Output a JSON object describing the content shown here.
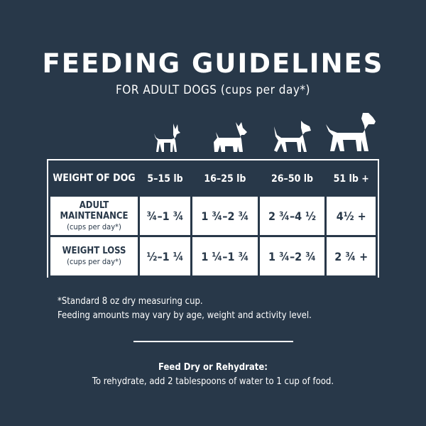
{
  "title": "FEEDING GUIDELINES",
  "subtitle": "FOR ADULT DOGS (cups per day*)",
  "table": {
    "header": [
      "WEIGHT OF DOG",
      "5–15 lb",
      "16–25 lb",
      "26–50 lb",
      "51 lb +"
    ],
    "rows": [
      {
        "label": "ADULT MAINTENANCE",
        "sub": "(cups per day*)",
        "values": [
          "¾–1 ¾",
          "1 ¾–2 ¾",
          "2 ¾–4 ½",
          "4½ +"
        ]
      },
      {
        "label": "WEIGHT LOSS",
        "sub": "(cups per day*)",
        "values": [
          "½–1 ¼",
          "1 ¼–1 ¾",
          "1 ¾–2 ¾",
          "2 ¾ +"
        ]
      }
    ]
  },
  "notes": [
    "*Standard 8 oz dry measuring cup.",
    "Feeding amounts may vary by age, weight and activity level."
  ],
  "feed": {
    "heading": "Feed Dry or Rehydrate:",
    "text": "To rehydrate, add 2 tablespoons of water to 1 cup of food."
  },
  "icons": [
    "small-dog-icon",
    "terrier-icon",
    "boxer-icon",
    "large-dog-icon"
  ],
  "colors": {
    "background": "#283849",
    "cell": "#ffffff"
  }
}
